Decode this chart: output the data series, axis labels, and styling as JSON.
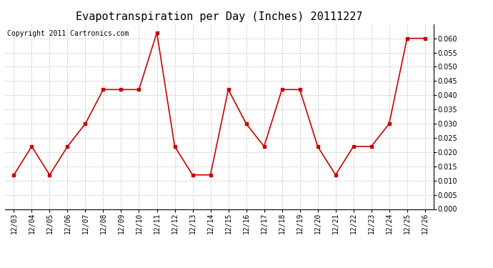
{
  "title": "Evapotranspiration per Day (Inches) 20111227",
  "copyright": "Copyright 2011 Cartronics.com",
  "x_labels": [
    "12/03",
    "12/04",
    "12/05",
    "12/06",
    "12/07",
    "12/08",
    "12/09",
    "12/10",
    "12/11",
    "12/12",
    "12/13",
    "12/14",
    "12/15",
    "12/16",
    "12/17",
    "12/18",
    "12/19",
    "12/20",
    "12/21",
    "12/22",
    "12/23",
    "12/24",
    "12/25",
    "12/26"
  ],
  "y_values": [
    0.012,
    0.022,
    0.012,
    0.022,
    0.03,
    0.042,
    0.042,
    0.042,
    0.062,
    0.022,
    0.012,
    0.012,
    0.042,
    0.03,
    0.022,
    0.042,
    0.042,
    0.022,
    0.012,
    0.022,
    0.022,
    0.03,
    0.06,
    0.06
  ],
  "line_color": "#cc0000",
  "marker": "s",
  "marker_size": 3,
  "ylim": [
    0.0,
    0.065
  ],
  "yticks": [
    0.0,
    0.005,
    0.01,
    0.015,
    0.02,
    0.025,
    0.03,
    0.035,
    0.04,
    0.045,
    0.05,
    0.055,
    0.06
  ],
  "background_color": "#ffffff",
  "grid_color": "#cccccc",
  "title_fontsize": 11,
  "copyright_fontsize": 7,
  "tick_fontsize": 7,
  "ylabel_fontsize": 7
}
